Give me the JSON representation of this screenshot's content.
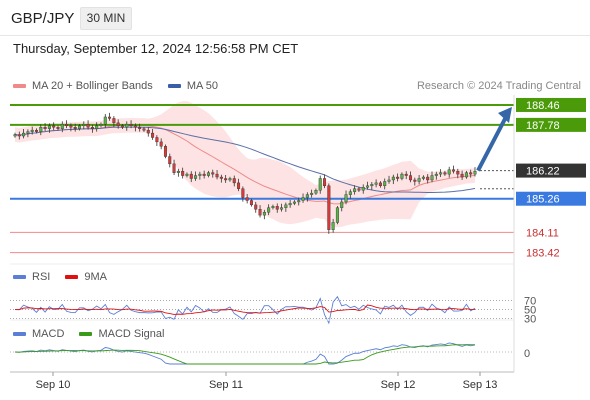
{
  "header": {
    "symbol": "GBP/JPY",
    "timeframe": "30 MIN"
  },
  "datetime": "Thursday, September 12, 2024 12:56:58 PM CET",
  "credit": "Research © 2024 Trading Central",
  "legend": {
    "main": [
      {
        "label": "MA 20 + Bollinger Bands",
        "color": "#f08a8a"
      },
      {
        "label": "MA 50",
        "color": "#3a5fa8"
      }
    ],
    "rsi": [
      {
        "label": "RSI",
        "color": "#5b7fd6"
      },
      {
        "label": "9MA",
        "color": "#e01010"
      }
    ],
    "macd": [
      {
        "label": "MACD",
        "color": "#5b7fd6"
      },
      {
        "label": "MACD Signal",
        "color": "#3a9a1a"
      }
    ]
  },
  "colors": {
    "up": "#5ab24a",
    "down": "#d83a3a",
    "wick": "#333333",
    "bb_fill": "#fde0e0",
    "resistance": "#4a9a0a",
    "support": "#3a7ae0",
    "target": "#f08a8a",
    "arrow": "#3566a8",
    "current": "#333333"
  },
  "chart_data": {
    "type": "candlestick",
    "x_tick_labels": [
      "Sep 10",
      "Sep 11",
      "Sep 12",
      "Sep 13"
    ],
    "y_range": [
      183.1,
      188.8
    ],
    "current_price": 186.22,
    "levels": [
      {
        "label": "188.46",
        "value": 188.46,
        "kind": "resistance"
      },
      {
        "label": "187.78",
        "value": 187.78,
        "kind": "resistance"
      },
      {
        "label": "185.26",
        "value": 185.26,
        "kind": "support"
      },
      {
        "label": "184.11",
        "value": 184.11,
        "kind": "target"
      },
      {
        "label": "183.42",
        "value": 183.42,
        "kind": "target"
      }
    ],
    "current_label": "186.22",
    "forecast_arrow": {
      "from": 186.22,
      "to": 188.46
    },
    "closes": [
      187.45,
      187.4,
      187.5,
      187.55,
      187.6,
      187.55,
      187.7,
      187.65,
      187.75,
      187.7,
      187.65,
      187.8,
      187.75,
      187.7,
      187.65,
      187.75,
      187.8,
      187.7,
      187.65,
      187.75,
      187.8,
      188.05,
      188.0,
      187.85,
      187.75,
      187.7,
      187.8,
      187.75,
      187.7,
      187.65,
      187.6,
      187.5,
      187.35,
      187.2,
      187.05,
      186.7,
      186.45,
      186.15,
      186.2,
      186.05,
      186.1,
      185.95,
      186.05,
      186.1,
      186.05,
      186.15,
      186.1,
      186.0,
      185.95,
      185.9,
      185.95,
      185.8,
      185.6,
      185.3,
      185.2,
      185.05,
      184.9,
      184.7,
      184.8,
      184.95,
      185.0,
      184.9,
      184.95,
      185.05,
      185.1,
      185.15,
      185.2,
      185.3,
      185.4,
      185.45,
      185.55,
      185.95,
      185.7,
      184.2,
      184.45,
      184.95,
      185.15,
      185.4,
      185.5,
      185.6,
      185.55,
      185.65,
      185.7,
      185.75,
      185.8,
      185.7,
      185.85,
      185.9,
      186.0,
      185.95,
      186.1,
      186.05,
      185.9,
      185.85,
      185.95,
      186.0,
      185.9,
      186.05,
      186.1,
      186.15,
      186.1,
      186.25,
      186.2,
      186.1,
      186.0,
      186.15,
      186.1,
      186.2
    ],
    "ma50_end": 185.6,
    "rsi": {
      "levels": [
        70,
        50,
        30
      ],
      "range": [
        0,
        100
      ]
    },
    "macd": {
      "zero_label": "0"
    }
  }
}
